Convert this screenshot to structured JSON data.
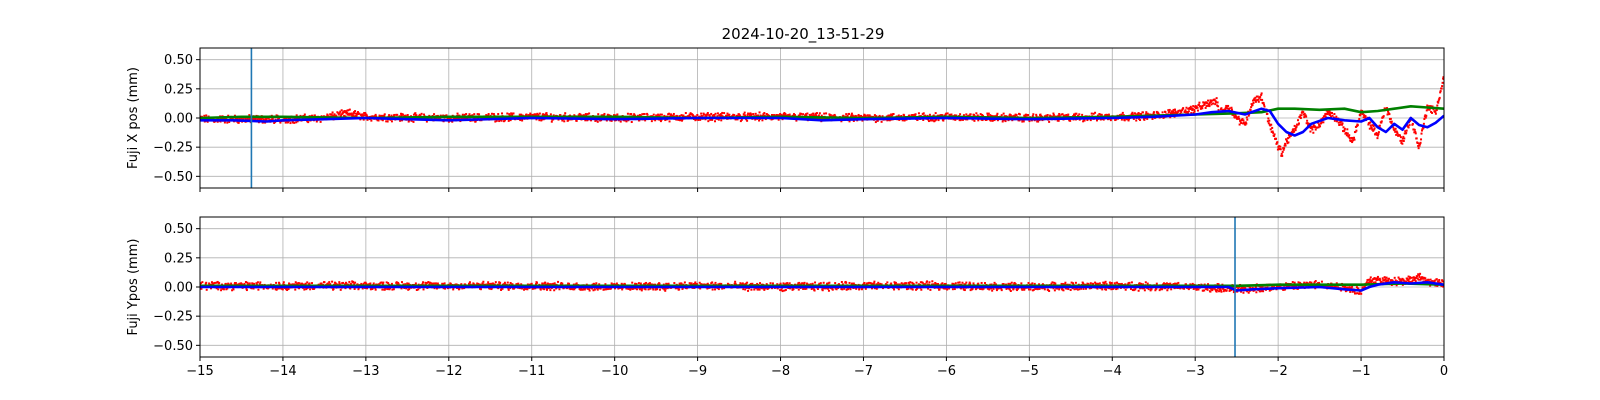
{
  "figure": {
    "title": "2024-10-20_13-51-29"
  },
  "chart_data": [
    {
      "type": "scatter",
      "xlabel": "",
      "ylabel": "Fuji X pos (mm)",
      "xlim": [
        -15,
        0
      ],
      "ylim": [
        -0.6,
        0.6
      ],
      "grid": true,
      "xticks": [
        -15,
        -14,
        -13,
        -12,
        -11,
        -10,
        -9,
        -8,
        -7,
        -6,
        -5,
        -4,
        -3,
        -2,
        -1,
        0
      ],
      "xtick_labels": [],
      "yticks": [
        0.5,
        0.25,
        0.0,
        -0.25,
        -0.5
      ],
      "ytick_labels": [
        "0.50",
        "0.25",
        "0.00",
        "−0.25",
        "−0.50"
      ],
      "vline": {
        "x": -14.38,
        "color": "#1f77b4"
      },
      "series": [
        {
          "style": "scatter",
          "color": "#ff0000",
          "spread": 0.025,
          "x": [
            -15,
            -14,
            -13.5,
            -13.2,
            -13,
            -12,
            -11,
            -10,
            -9,
            -8,
            -7,
            -6,
            -5,
            -4,
            -3.5,
            -3.2,
            -3.0,
            -2.85,
            -2.75,
            -2.7,
            -2.6,
            -2.5,
            -2.4,
            -2.3,
            -2.2,
            -2.1,
            -2.0,
            -1.95,
            -1.9,
            -1.8,
            -1.7,
            -1.6,
            -1.5,
            -1.4,
            -1.3,
            -1.2,
            -1.1,
            -1.0,
            -0.9,
            -0.8,
            -0.7,
            -0.6,
            -0.5,
            -0.4,
            -0.3,
            -0.2,
            -0.1,
            0.0
          ],
          "y": [
            -0.01,
            -0.01,
            0.0,
            0.04,
            0.01,
            0.0,
            0.01,
            0.0,
            0.01,
            0.01,
            0.0,
            0.01,
            0.0,
            0.01,
            0.02,
            0.05,
            0.08,
            0.12,
            0.15,
            0.05,
            0.1,
            0.0,
            -0.05,
            0.15,
            0.18,
            -0.05,
            -0.25,
            -0.3,
            -0.2,
            -0.1,
            0.05,
            -0.1,
            -0.05,
            0.05,
            0.0,
            -0.1,
            -0.2,
            0.05,
            -0.05,
            -0.15,
            0.1,
            -0.1,
            -0.2,
            0.0,
            -0.25,
            0.1,
            0.05,
            0.35
          ]
        },
        {
          "style": "line",
          "color": "#008000",
          "x": [
            -15,
            -14.5,
            -14.0,
            -13,
            -12,
            -11,
            -10,
            -9,
            -8,
            -7,
            -6,
            -5,
            -4,
            -3.5,
            -3.0,
            -2.5,
            -2.2,
            -2.0,
            -1.8,
            -1.5,
            -1.2,
            -1.0,
            -0.8,
            -0.6,
            -0.4,
            -0.2,
            0.0
          ],
          "y": [
            0.0,
            0.01,
            0.01,
            0.0,
            0.01,
            0.01,
            0.01,
            0.0,
            0.01,
            0.0,
            0.01,
            0.0,
            0.01,
            0.02,
            0.03,
            0.04,
            0.05,
            0.08,
            0.08,
            0.07,
            0.08,
            0.05,
            0.06,
            0.08,
            0.1,
            0.09,
            0.08
          ]
        },
        {
          "style": "line",
          "color": "#0000ff",
          "x": [
            -15,
            -14.6,
            -14.2,
            -14.0,
            -13.5,
            -13,
            -12,
            -11,
            -10,
            -9,
            -8,
            -7.5,
            -7,
            -6,
            -5,
            -4,
            -3.5,
            -3.0,
            -2.8,
            -2.6,
            -2.4,
            -2.2,
            -2.1,
            -2.0,
            -1.9,
            -1.8,
            -1.7,
            -1.6,
            -1.4,
            -1.2,
            -1.0,
            -0.9,
            -0.8,
            -0.7,
            -0.6,
            -0.5,
            -0.4,
            -0.3,
            -0.2,
            -0.1,
            0.0
          ],
          "y": [
            -0.02,
            -0.02,
            -0.03,
            -0.02,
            -0.01,
            0.0,
            -0.02,
            0.0,
            -0.01,
            0.0,
            0.0,
            -0.02,
            -0.01,
            0.0,
            -0.01,
            0.0,
            0.01,
            0.03,
            0.05,
            0.06,
            0.03,
            0.08,
            0.06,
            -0.05,
            -0.12,
            -0.15,
            -0.12,
            -0.05,
            0.0,
            -0.02,
            -0.03,
            0.0,
            -0.08,
            -0.12,
            -0.05,
            -0.1,
            0.0,
            -0.06,
            -0.08,
            -0.04,
            0.02
          ]
        }
      ]
    },
    {
      "type": "scatter",
      "xlabel": "",
      "ylabel": "Fuji Ypos (mm)",
      "xlim": [
        -15,
        0
      ],
      "ylim": [
        -0.6,
        0.6
      ],
      "grid": true,
      "xticks": [
        -15,
        -14,
        -13,
        -12,
        -11,
        -10,
        -9,
        -8,
        -7,
        -6,
        -5,
        -4,
        -3,
        -2,
        -1,
        0
      ],
      "xtick_labels": [
        "−15",
        "−14",
        "−13",
        "−12",
        "−11",
        "−10",
        "−9",
        "−8",
        "−7",
        "−6",
        "−5",
        "−4",
        "−3",
        "−2",
        "−1",
        "0"
      ],
      "yticks": [
        0.5,
        0.25,
        0.0,
        -0.25,
        -0.5
      ],
      "ytick_labels": [
        "0.50",
        "0.25",
        "0.00",
        "−0.25",
        "−0.50"
      ],
      "vline": {
        "x": -2.52,
        "color": "#1f77b4"
      },
      "series": [
        {
          "style": "scatter",
          "color": "#ff0000",
          "spread": 0.025,
          "x": [
            -15,
            -14,
            -13,
            -12,
            -11,
            -10,
            -9,
            -8,
            -7,
            -6,
            -5,
            -4,
            -3,
            -2.5,
            -2.0,
            -1.5,
            -1.2,
            -1.0,
            -0.9,
            -0.8,
            -0.6,
            -0.4,
            -0.3,
            -0.2,
            0.0
          ],
          "y": [
            0.01,
            0.01,
            0.01,
            0.01,
            0.01,
            0.0,
            0.01,
            0.0,
            0.01,
            0.01,
            0.0,
            0.01,
            0.0,
            -0.02,
            0.0,
            0.02,
            0.0,
            -0.04,
            0.06,
            0.06,
            0.05,
            0.06,
            0.08,
            0.05,
            0.02
          ]
        },
        {
          "style": "line",
          "color": "#008000",
          "x": [
            -15,
            -14,
            -13,
            -12,
            -11,
            -10,
            -9,
            -8,
            -7,
            -6,
            -5,
            -4,
            -3,
            -2.5,
            -2.0,
            -1.5,
            -1.0,
            -0.5,
            0.0
          ],
          "y": [
            0.01,
            0.01,
            0.01,
            0.01,
            0.01,
            0.01,
            0.01,
            0.01,
            0.01,
            0.01,
            0.01,
            0.01,
            0.01,
            0.01,
            0.02,
            0.02,
            0.02,
            0.03,
            0.02
          ]
        },
        {
          "style": "line",
          "color": "#0000ff",
          "x": [
            -15,
            -14,
            -13,
            -12,
            -11,
            -10,
            -9,
            -8,
            -7,
            -6,
            -5,
            -4,
            -3,
            -2.6,
            -2.5,
            -2.3,
            -2.0,
            -1.5,
            -1.2,
            -1.0,
            -0.9,
            -0.8,
            -0.6,
            -0.4,
            -0.2,
            0.0
          ],
          "y": [
            0.0,
            0.0,
            0.0,
            0.0,
            0.0,
            0.0,
            0.0,
            0.0,
            0.0,
            0.0,
            0.0,
            0.0,
            0.0,
            0.0,
            -0.03,
            -0.02,
            -0.01,
            0.0,
            -0.02,
            -0.03,
            0.0,
            0.02,
            0.04,
            0.03,
            0.04,
            0.02
          ]
        }
      ]
    }
  ]
}
